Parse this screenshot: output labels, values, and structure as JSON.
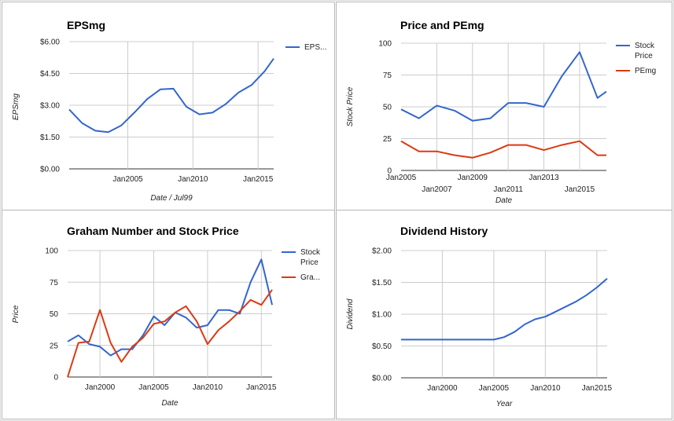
{
  "colors": {
    "blue": "#3366cc",
    "red": "#dc3912",
    "grid": "#cccccc",
    "axis": "#333333"
  },
  "chart_data": [
    {
      "id": "eps",
      "type": "line",
      "title": "EPSmg",
      "xlabel": "Date / Jul99",
      "ylabel": "EPSmg",
      "xlim": [
        2000.5,
        2016.2
      ],
      "ylim": [
        0,
        6
      ],
      "y_ticks": [
        0,
        1.5,
        3,
        4.5,
        6
      ],
      "y_tick_labels": [
        "$0.00",
        "$1.50",
        "$3.00",
        "$4.50",
        "$6.00"
      ],
      "x_ticks": [
        2005,
        2010,
        2015
      ],
      "x_tick_labels": [
        "Jan2005",
        "Jan2010",
        "Jan2015"
      ],
      "legend": "right",
      "series": [
        {
          "name": "EPS...",
          "color": "#3366cc",
          "x": [
            2000.5,
            2001.5,
            2002.5,
            2003.5,
            2004.5,
            2005.5,
            2006.5,
            2007.5,
            2008.5,
            2009.5,
            2010.5,
            2011.5,
            2012.5,
            2013.5,
            2014.5,
            2015.5,
            2016.2
          ],
          "y": [
            2.8,
            2.15,
            1.8,
            1.73,
            2.05,
            2.65,
            3.3,
            3.75,
            3.78,
            2.93,
            2.57,
            2.65,
            3.05,
            3.6,
            3.95,
            4.6,
            5.2
          ]
        }
      ]
    },
    {
      "id": "price-pe",
      "type": "line",
      "title": "Price and PEmg",
      "xlabel": "Date",
      "ylabel": "Stock Price",
      "xlim": [
        2005,
        2016.5
      ],
      "ylim": [
        0,
        100
      ],
      "y_ticks": [
        0,
        25,
        50,
        75,
        100
      ],
      "y_tick_labels": [
        "0",
        "25",
        "50",
        "75",
        "100"
      ],
      "x_ticks": [
        2005,
        2007,
        2009,
        2011,
        2013,
        2015
      ],
      "x_tick_labels": [
        "Jan2005",
        "Jan2007",
        "Jan2009",
        "Jan2011",
        "Jan2013",
        "Jan2015"
      ],
      "legend": "right",
      "series": [
        {
          "name_lines": [
            "Stock",
            "Price"
          ],
          "color": "#3366cc",
          "x": [
            2005,
            2006,
            2007,
            2008,
            2009,
            2010,
            2011,
            2012,
            2013,
            2014,
            2015,
            2016,
            2016.5
          ],
          "y": [
            48,
            41,
            51,
            47,
            39,
            41,
            53,
            53,
            50,
            74,
            93,
            57,
            62
          ]
        },
        {
          "name_lines": [
            "PEmg"
          ],
          "color": "#dc3912",
          "x": [
            2005,
            2006,
            2007,
            2008,
            2009,
            2010,
            2011,
            2012,
            2013,
            2014,
            2015,
            2016,
            2016.5
          ],
          "y": [
            23,
            15,
            15,
            12,
            10,
            14,
            20,
            20,
            16,
            20,
            23,
            12,
            12
          ]
        }
      ]
    },
    {
      "id": "graham",
      "type": "line",
      "title": "Graham Number and Stock Price",
      "xlabel": "Date",
      "ylabel": "Price",
      "xlim": [
        1997,
        2016
      ],
      "ylim": [
        0,
        100
      ],
      "y_ticks": [
        0,
        25,
        50,
        75,
        100
      ],
      "y_tick_labels": [
        "0",
        "25",
        "50",
        "75",
        "100"
      ],
      "x_ticks": [
        2000,
        2005,
        2010,
        2015
      ],
      "x_tick_labels": [
        "Jan2000",
        "Jan2005",
        "Jan2010",
        "Jan2015"
      ],
      "legend": "right",
      "series": [
        {
          "name_lines": [
            "Stock",
            "Price"
          ],
          "color": "#3366cc",
          "x": [
            1997,
            1998,
            1999,
            2000,
            2001,
            2002,
            2003,
            2004,
            2005,
            2006,
            2007,
            2008,
            2009,
            2010,
            2011,
            2012,
            2013,
            2014,
            2015,
            2016
          ],
          "y": [
            28,
            33,
            26,
            24,
            17,
            22,
            22,
            33,
            48,
            41,
            51,
            47,
            39,
            41,
            53,
            53,
            50,
            75,
            93,
            57
          ]
        },
        {
          "name_lines": [
            "Gra..."
          ],
          "color": "#dc3912",
          "x": [
            1997,
            1998,
            1999,
            2000,
            2001,
            2002,
            2003,
            2004,
            2005,
            2006,
            2007,
            2008,
            2009,
            2010,
            2011,
            2012,
            2013,
            2014,
            2015,
            2016
          ],
          "y": [
            0,
            27,
            28,
            53,
            27,
            12,
            24,
            31,
            42,
            44,
            51,
            56,
            44,
            26,
            37,
            44,
            52,
            61,
            57,
            69
          ]
        }
      ]
    },
    {
      "id": "dividend",
      "type": "line",
      "title": "Dividend History",
      "xlabel": "Year",
      "ylabel": "Dividend",
      "xlim": [
        1996,
        2016
      ],
      "ylim": [
        0,
        2
      ],
      "y_ticks": [
        0,
        0.5,
        1,
        1.5,
        2
      ],
      "y_tick_labels": [
        "$0.00",
        "$0.50",
        "$1.00",
        "$1.50",
        "$2.00"
      ],
      "x_ticks": [
        2000,
        2005,
        2010,
        2015
      ],
      "x_tick_labels": [
        "Jan2000",
        "Jan2005",
        "Jan2010",
        "Jan2015"
      ],
      "legend": "none",
      "series": [
        {
          "color": "#3366cc",
          "x": [
            1996,
            1997,
            1998,
            1999,
            2000,
            2001,
            2002,
            2003,
            2004,
            2005,
            2006,
            2007,
            2008,
            2009,
            2010,
            2011,
            2012,
            2013,
            2014,
            2015,
            2016
          ],
          "y": [
            0.6,
            0.6,
            0.6,
            0.6,
            0.6,
            0.6,
            0.6,
            0.6,
            0.6,
            0.6,
            0.64,
            0.72,
            0.84,
            0.92,
            0.96,
            1.04,
            1.12,
            1.2,
            1.3,
            1.42,
            1.56
          ]
        }
      ]
    }
  ]
}
